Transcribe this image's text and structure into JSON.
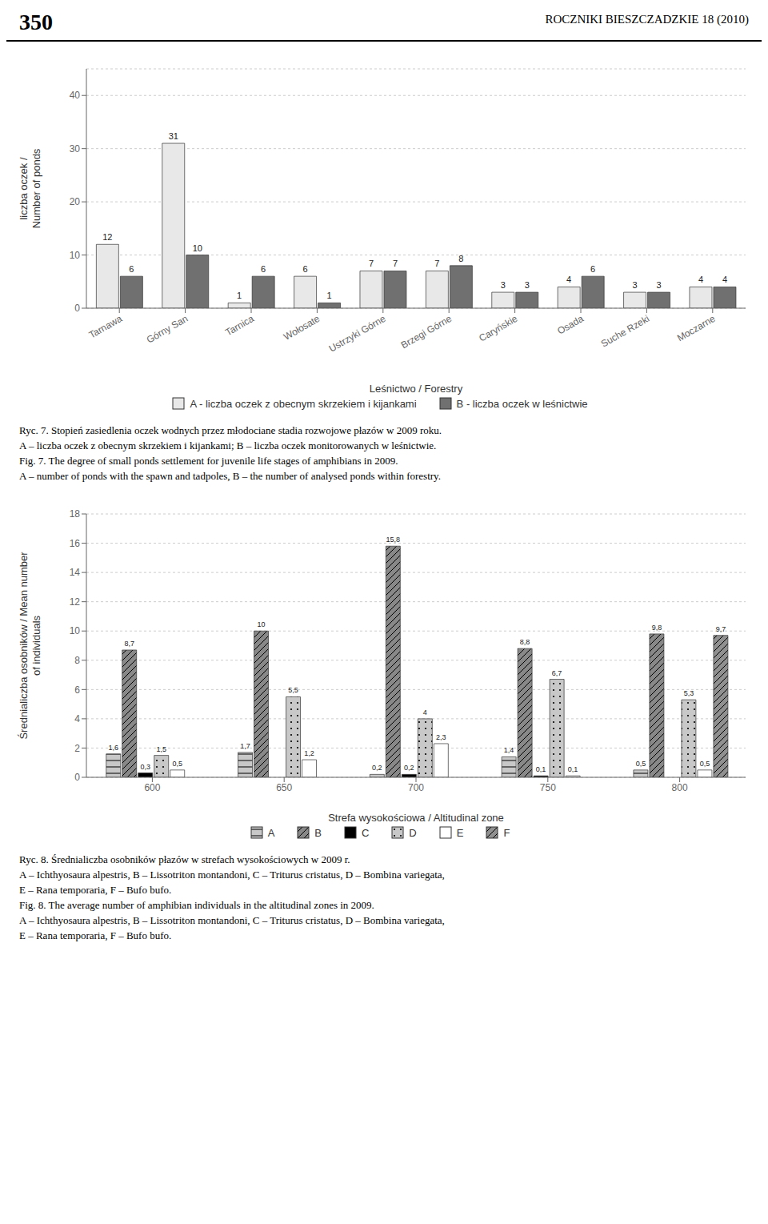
{
  "chart_data": [
    {
      "type": "bar",
      "xlabel": "Leśnictwo / Forestry",
      "ylabel": "liczba oczek /\nNumber of ponds",
      "categories": [
        "Tarnawa",
        "Górny San",
        "Tarnica",
        "Wołosate",
        "Ustrzyki Górne",
        "Brzegi Górne",
        "Caryńskie",
        "Osada",
        "Suche Rzeki",
        "Moczarne"
      ],
      "series": [
        {
          "name": "A - liczba oczek z obecnym skrzekiem i kijankami",
          "color": "#e8e8e8",
          "values": [
            12,
            31,
            1,
            6,
            7,
            7,
            3,
            4,
            3,
            4
          ]
        },
        {
          "name": "B - liczba oczek w leśnictwie",
          "color": "#707070",
          "values": [
            6,
            10,
            6,
            1,
            7,
            8,
            3,
            6,
            3,
            4
          ]
        }
      ],
      "ylim": [
        0,
        45
      ],
      "yticks": [
        0,
        10,
        20,
        30,
        40
      ],
      "grid": true,
      "data_labels": true,
      "annotations": [
        "350",
        "ROCZNIKI BIESZCZADZKIE 18 (2010)",
        "Ryc. 7. Stopień zasiedlenia oczek wodnych przez młodociane stadia rozwojowe płazów w 2009 roku.",
        "A – liczba oczek z obecnym skrzekiem i kijankami; B – liczba oczek monitorowanych w leśnictwie.",
        "Fig. 7. The degree of small ponds settlement for juvenile life stages of amphibians in 2009.",
        "A – number of ponds with the spawn and tadpoles, B – the number of analysed ponds within forestry."
      ]
    },
    {
      "type": "bar",
      "xlabel": "Strefa wysokościowa  / Altitudinal zone",
      "ylabel": "Średnialiczba osobników / Mean number\nof individuals",
      "categories": [
        "600",
        "650",
        "700",
        "750",
        "800"
      ],
      "series": [
        {
          "name": "A",
          "color": "#c8c8c8",
          "values": [
            1.6,
            1.7,
            0.2,
            1.4,
            0.5
          ],
          "value_labels": [
            "1,6",
            "1,7",
            "0,2",
            "1,4",
            "0,5"
          ]
        },
        {
          "name": "B",
          "color": "#888888",
          "values": [
            8.7,
            10,
            15.8,
            8.8,
            9.8
          ],
          "value_labels": [
            "8,7",
            "10",
            "15,8",
            "8,8",
            "9,8"
          ]
        },
        {
          "name": "C",
          "color": "#000000",
          "values": [
            0.3,
            0,
            0.2,
            0.1,
            0
          ],
          "value_labels": [
            "0,3",
            null,
            "0,2",
            "0,1",
            null
          ]
        },
        {
          "name": "D",
          "color": "#c8c8c8",
          "values": [
            1.5,
            5.5,
            4,
            6.7,
            5.3
          ],
          "value_labels": [
            "1,5",
            "5,5",
            "4",
            "6,7",
            "5,3"
          ]
        },
        {
          "name": "E",
          "color": "#ffffff",
          "values": [
            0.5,
            1.2,
            2.3,
            0.1,
            0.5
          ],
          "value_labels": [
            "0,5",
            "1,2",
            "2,3",
            "0,1",
            "0,5"
          ]
        },
        {
          "name": "F",
          "color": "#909090",
          "values": [
            0,
            0,
            0,
            0,
            9.7
          ],
          "value_labels": [
            null,
            null,
            null,
            null,
            "9,7"
          ]
        }
      ],
      "ylim": [
        0,
        18
      ],
      "yticks": [
        0,
        2,
        4,
        6,
        8,
        10,
        12,
        14,
        16,
        18
      ],
      "grid": true,
      "data_labels": true,
      "annotations": [
        "Ryc. 8. Średnialiczba osobników płazów w strefach wysokościowych w 2009 r.",
        "A – Ichthyosaura alpestris, B – Lissotriton montandoni, C – Triturus cristatus, D – Bombina variegata,",
        "E – Rana temporaria, F – Bufo bufo.",
        "Fig. 8. The average number of amphibian individuals in the altitudinal zones in 2009.",
        "A – Ichthyosaura alpestris, B – Lissotriton montandoni, C – Triturus cristatus, D – Bombina variegata,",
        "E – Rana temporaria, F – Bufo bufo."
      ]
    }
  ]
}
